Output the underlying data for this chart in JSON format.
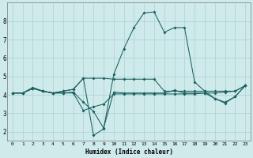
{
  "xlabel": "Humidex (Indice chaleur)",
  "bg_color": "#ceeaea",
  "grid_color": "#b0d0d0",
  "line_color": "#1a6060",
  "xlim": [
    -0.5,
    23.5
  ],
  "ylim": [
    1.5,
    9.0
  ],
  "xticks": [
    0,
    1,
    2,
    3,
    4,
    5,
    6,
    7,
    8,
    9,
    10,
    11,
    12,
    13,
    14,
    15,
    16,
    17,
    18,
    19,
    20,
    21,
    22,
    23
  ],
  "yticks": [
    2,
    3,
    4,
    5,
    6,
    7,
    8
  ],
  "series": [
    [
      4.1,
      4.1,
      4.4,
      4.2,
      4.1,
      4.2,
      4.3,
      4.9,
      1.8,
      2.15,
      5.1,
      6.5,
      7.65,
      8.45,
      8.5,
      7.4,
      7.65,
      7.65,
      4.7,
      4.2,
      3.8,
      3.6,
      3.9,
      4.5
    ],
    [
      4.1,
      4.1,
      4.35,
      4.2,
      4.1,
      4.1,
      4.1,
      3.15,
      3.35,
      3.5,
      4.05,
      4.05,
      4.05,
      4.05,
      4.05,
      4.05,
      4.05,
      4.05,
      4.05,
      4.1,
      4.1,
      4.15,
      4.2,
      4.5
    ],
    [
      4.1,
      4.1,
      4.35,
      4.2,
      4.1,
      4.2,
      4.3,
      4.9,
      4.9,
      4.9,
      4.85,
      4.85,
      4.85,
      4.85,
      4.85,
      4.2,
      4.2,
      4.2,
      4.2,
      4.2,
      4.2,
      4.2,
      4.2,
      4.5
    ],
    [
      4.1,
      4.1,
      4.35,
      4.2,
      4.1,
      4.1,
      4.15,
      3.6,
      3.1,
      2.2,
      4.15,
      4.1,
      4.1,
      4.1,
      4.1,
      4.1,
      4.25,
      4.1,
      4.1,
      4.1,
      3.8,
      3.55,
      3.9,
      4.5
    ]
  ]
}
